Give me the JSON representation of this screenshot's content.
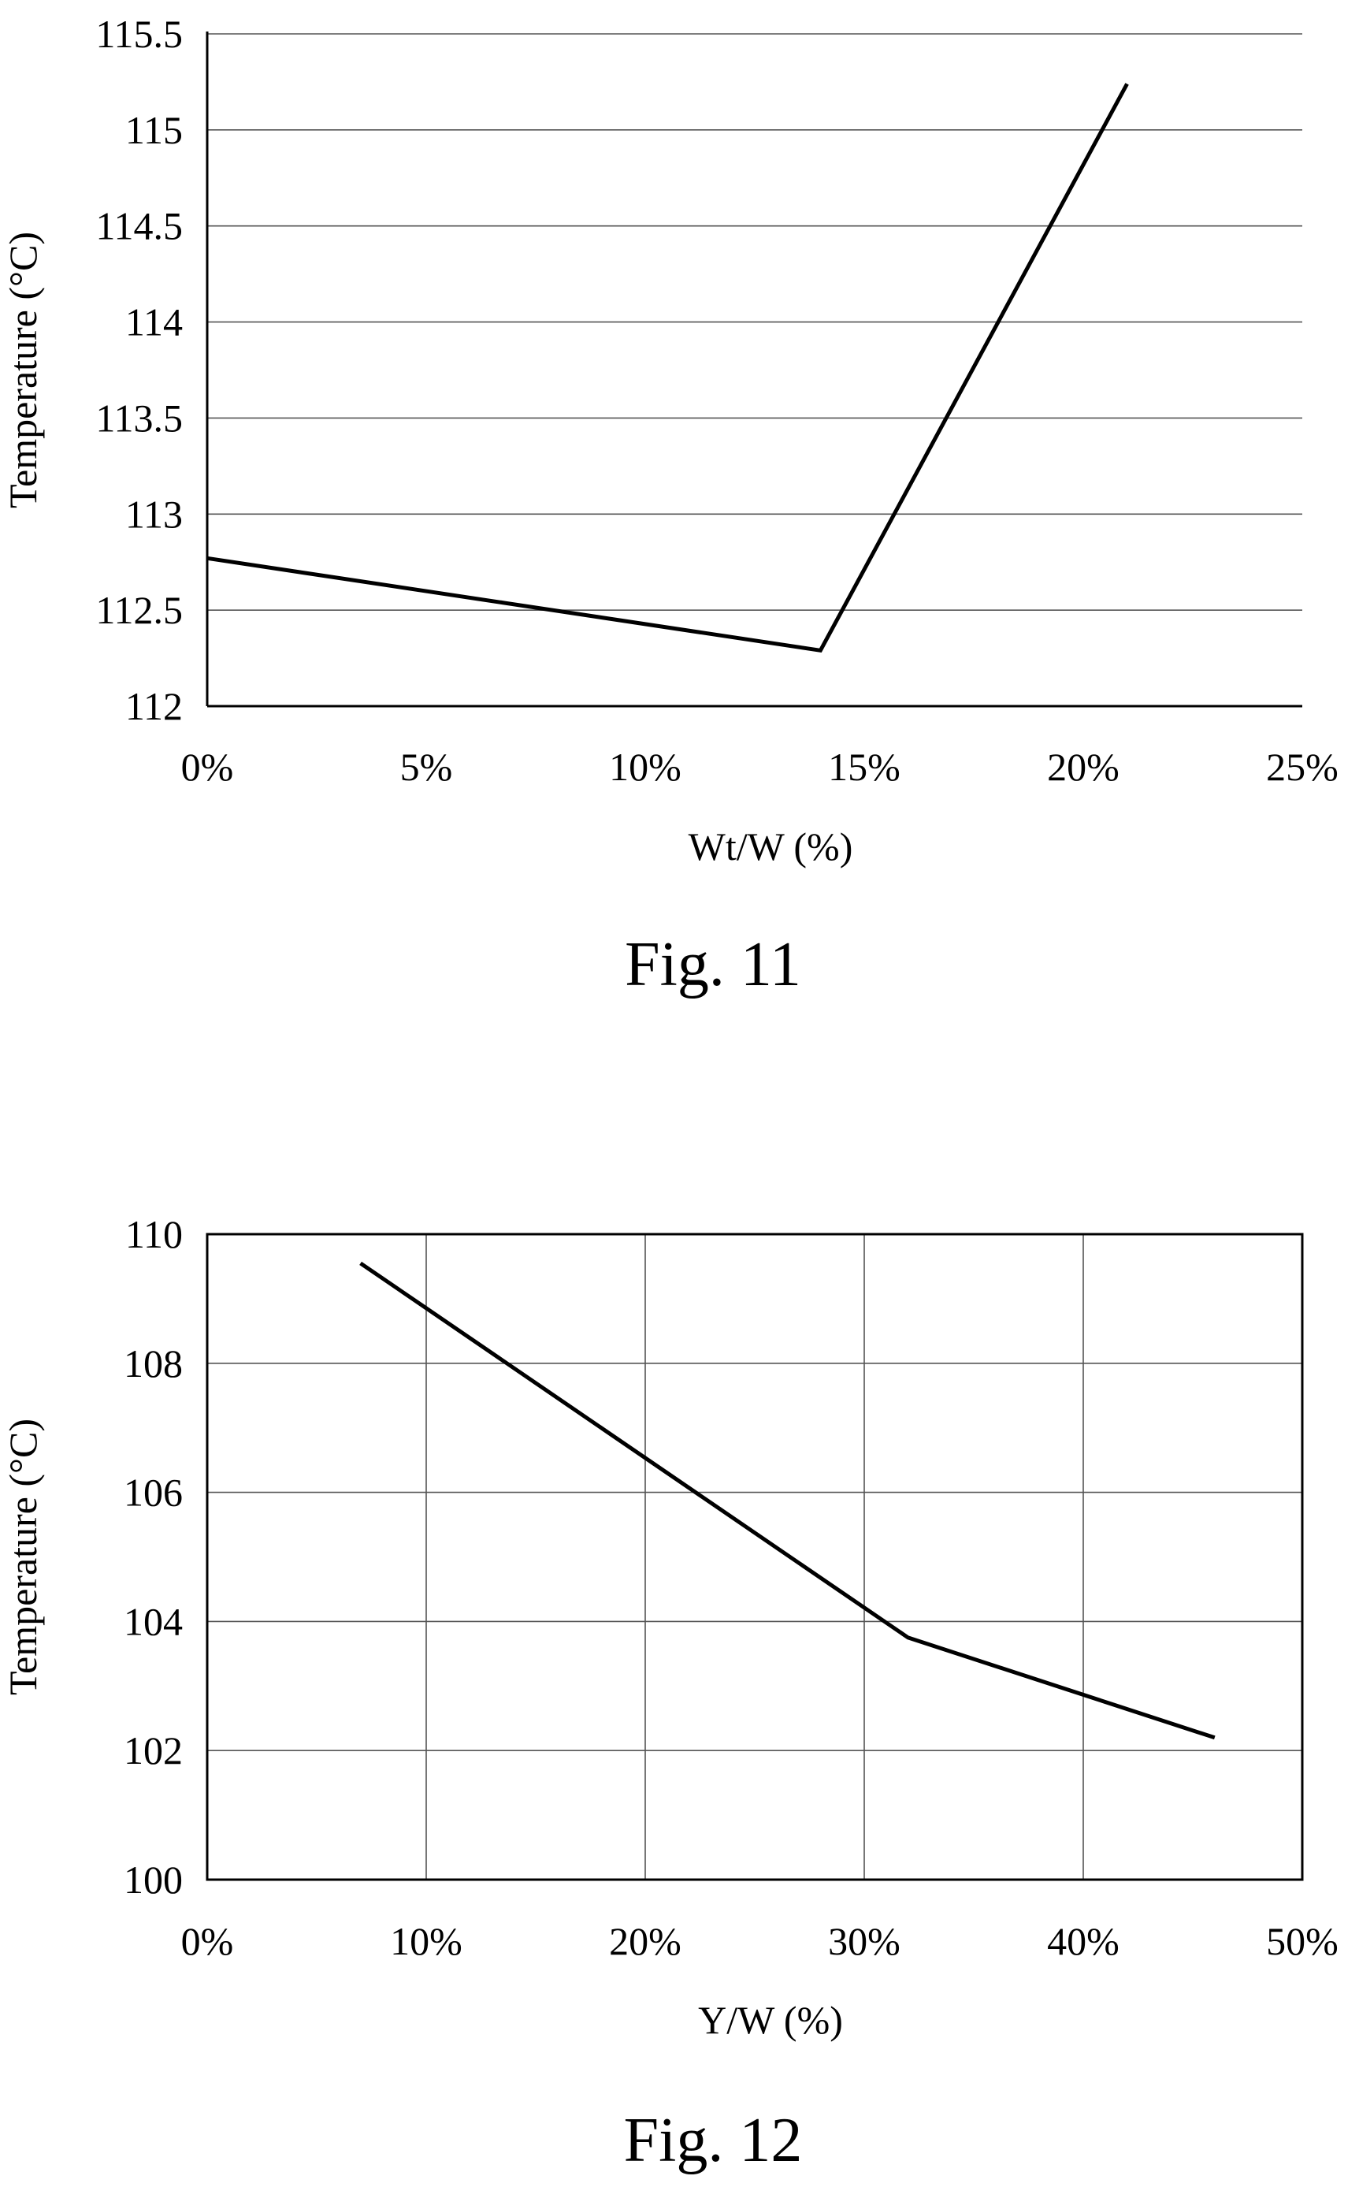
{
  "chart_data": [
    {
      "type": "line",
      "caption": "Fig. 11",
      "xlabel": "Wt/W (%)",
      "ylabel": "Temperature (°C)",
      "xlim": [
        0,
        25
      ],
      "ylim": [
        112,
        115.5
      ],
      "x_ticks": [
        0,
        5,
        10,
        15,
        20,
        25
      ],
      "x_tick_labels": [
        "0%",
        "5%",
        "10%",
        "15%",
        "20%",
        "25%"
      ],
      "y_ticks": [
        112,
        112.5,
        113,
        113.5,
        114,
        114.5,
        115,
        115.5
      ],
      "y_tick_labels": [
        "112",
        "112.5",
        "113",
        "113.5",
        "114",
        "114.5",
        "115",
        "115.5"
      ],
      "grid": {
        "horizontal": true,
        "vertical": false
      },
      "series": [
        {
          "x": [
            0,
            14,
            21
          ],
          "y": [
            112.77,
            112.29,
            115.24
          ]
        }
      ]
    },
    {
      "type": "line",
      "caption": "Fig. 12",
      "xlabel": "Y/W (%)",
      "ylabel": "Temperature (°C)",
      "xlim": [
        0,
        50
      ],
      "ylim": [
        100,
        110
      ],
      "x_ticks": [
        0,
        10,
        20,
        30,
        40,
        50
      ],
      "x_tick_labels": [
        "0%",
        "10%",
        "20%",
        "30%",
        "40%",
        "50%"
      ],
      "y_ticks": [
        100,
        102,
        104,
        106,
        108,
        110
      ],
      "y_tick_labels": [
        "100",
        "102",
        "104",
        "106",
        "108",
        "110"
      ],
      "grid": {
        "horizontal": true,
        "vertical": true
      },
      "series": [
        {
          "x": [
            7,
            32,
            46
          ],
          "y": [
            109.55,
            103.75,
            102.2
          ]
        }
      ]
    }
  ]
}
